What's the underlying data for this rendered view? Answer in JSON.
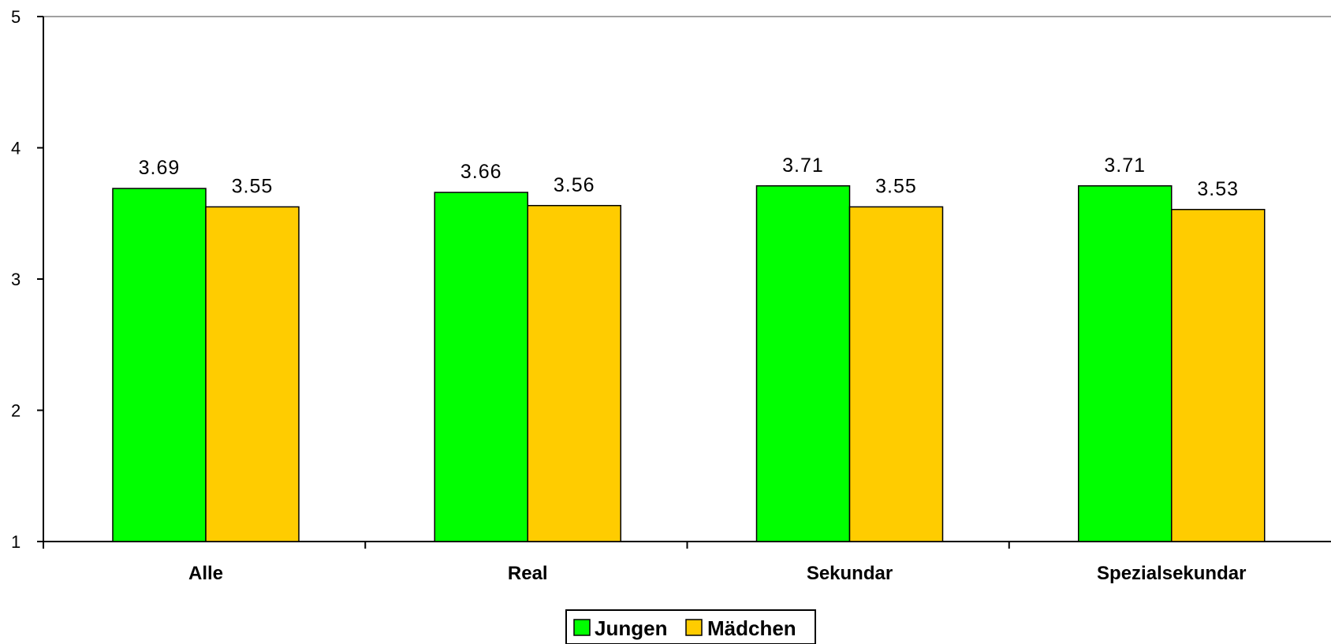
{
  "chart_data": {
    "type": "bar",
    "categories": [
      "Alle",
      "Real",
      "Sekundar",
      "Spezialsekundar"
    ],
    "series": [
      {
        "name": "Jungen",
        "color": "#00ff00",
        "values": [
          3.69,
          3.66,
          3.71,
          3.71
        ]
      },
      {
        "name": "Mädchen",
        "color": "#ffcc00",
        "values": [
          3.55,
          3.56,
          3.55,
          3.53
        ]
      }
    ],
    "data_labels": [
      [
        "3.69",
        "3.66",
        "3.71",
        "3.71"
      ],
      [
        "3.55",
        "3.56",
        "3.55",
        "3.53"
      ]
    ],
    "y_ticks": [
      "1",
      "2",
      "3",
      "4",
      "5"
    ],
    "ylim": [
      1,
      5
    ],
    "grid": false,
    "legend_position": "bottom"
  }
}
